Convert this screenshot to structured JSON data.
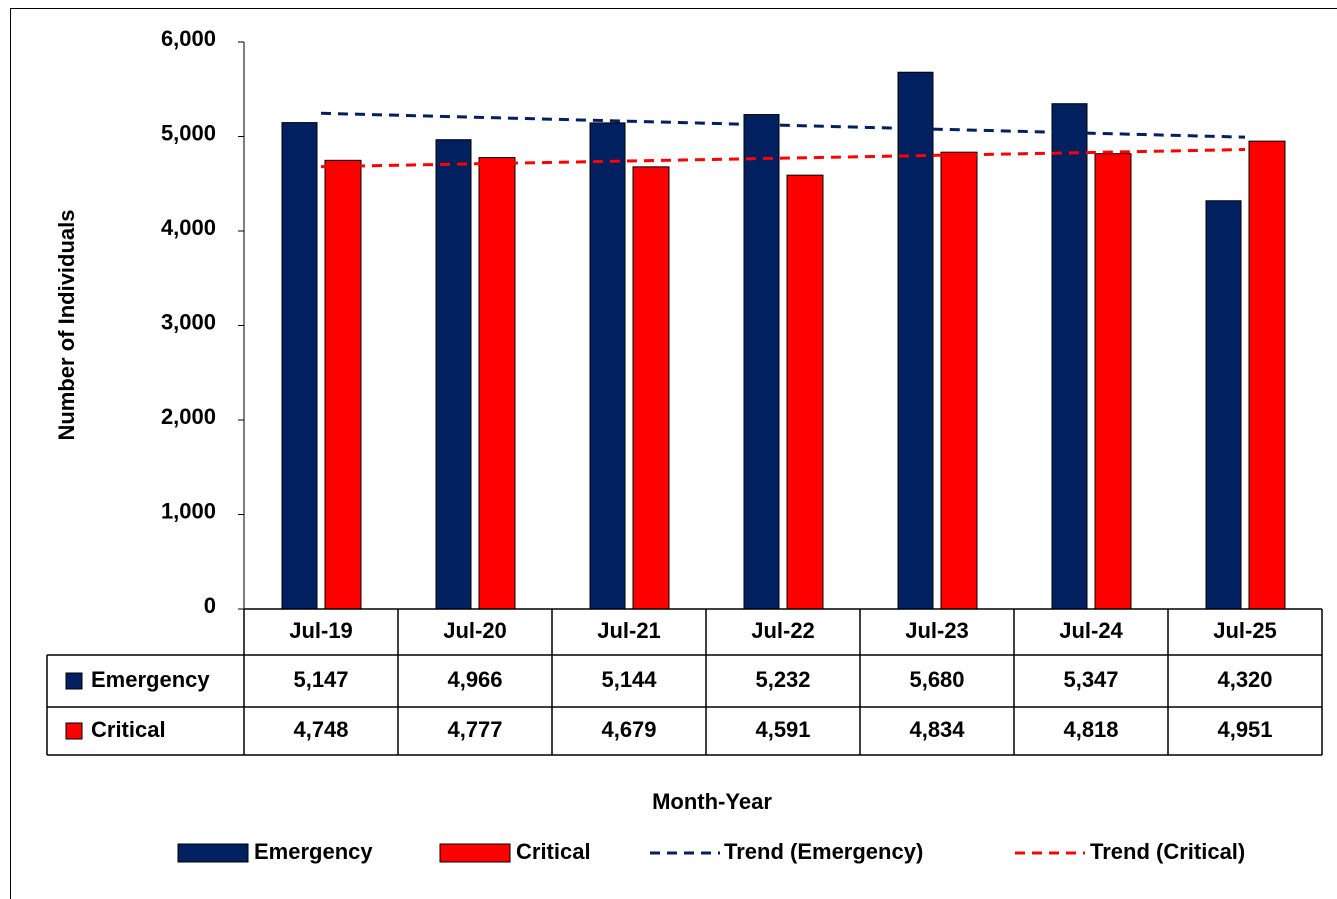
{
  "chart_data": {
    "type": "bar",
    "y_label": "Number of Individuals",
    "x_label": "Month-Year",
    "categories": [
      "Jul-19",
      "Jul-20",
      "Jul-21",
      "Jul-22",
      "Jul-23",
      "Jul-24",
      "Jul-25"
    ],
    "series": [
      {
        "name": "Emergency",
        "color": "#002060",
        "values": [
          5147,
          4966,
          5144,
          5232,
          5680,
          5347,
          4320
        ],
        "value_labels": [
          "5,147",
          "4,966",
          "5,144",
          "5,232",
          "5,680",
          "5,347",
          "4,320"
        ]
      },
      {
        "name": "Critical",
        "color": "#ff0000",
        "values": [
          4748,
          4777,
          4679,
          4591,
          4834,
          4818,
          4951
        ],
        "value_labels": [
          "4,748",
          "4,777",
          "4,679",
          "4,591",
          "4,834",
          "4,818",
          "4,951"
        ]
      }
    ],
    "trendlines": [
      {
        "name": "Trend (Emergency)",
        "color": "#002060",
        "values": [
          5246,
          5204,
          5162,
          5119,
          5077,
          5035,
          4993
        ]
      },
      {
        "name": "Trend (Critical)",
        "color": "#ff0000",
        "values": [
          4681,
          4711,
          4741,
          4771,
          4801,
          4831,
          4862
        ]
      }
    ],
    "ylim": [
      0,
      6000
    ],
    "yticks": [
      0,
      {
        "value": 1000,
        "label": "1,000"
      },
      {
        "value": 2000,
        "label": "2,000"
      },
      {
        "value": 3000,
        "label": "3,000"
      },
      {
        "value": 4000,
        "label": "4,000"
      },
      {
        "value": 5000,
        "label": "5,000"
      },
      {
        "value": 6000,
        "label": "6,000"
      }
    ],
    "legend": "bottom"
  }
}
